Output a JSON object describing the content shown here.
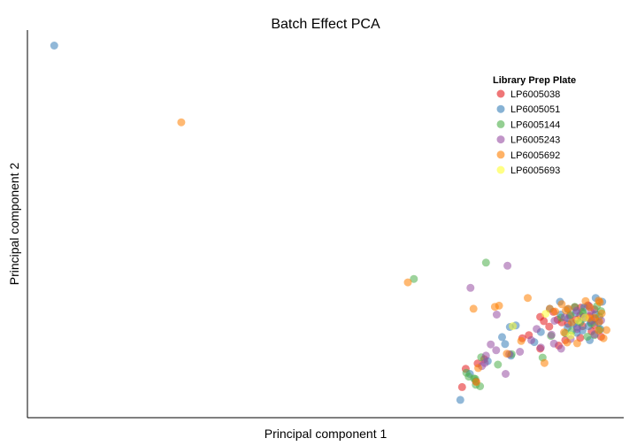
{
  "chart_data": {
    "type": "scatter",
    "title": "Batch Effect PCA",
    "xlabel": "Principal component 1",
    "ylabel": "Principal component 2",
    "xlim": [
      0,
      100
    ],
    "ylim": [
      0,
      100
    ],
    "show_ticks": false,
    "grid": false,
    "legend": {
      "title": "Library Prep Plate",
      "placement": "top-right"
    },
    "series": [
      {
        "name": "LP6005038",
        "color": "#E41A1C",
        "points": [
          [
            73.5,
            12.6
          ],
          [
            75.2,
            9.4
          ],
          [
            72.9,
            7.9
          ],
          [
            75.5,
            14.0
          ],
          [
            86.0,
            26.0
          ],
          [
            87.5,
            23.5
          ],
          [
            88.9,
            25.3
          ],
          [
            89.6,
            24.6
          ],
          [
            90.7,
            24.2
          ],
          [
            92.0,
            25.3
          ],
          [
            93.1,
            23.6
          ],
          [
            94.6,
            22.3
          ],
          [
            92.7,
            20.6
          ],
          [
            90.2,
            20.0
          ],
          [
            95.1,
            23.9
          ],
          [
            96.2,
            20.9
          ],
          [
            95.2,
            25.6
          ],
          [
            94.3,
            26.2
          ],
          [
            92.7,
            26.4
          ],
          [
            91.8,
            28.5
          ],
          [
            88.2,
            27.3
          ],
          [
            89.1,
            18.6
          ],
          [
            84.1,
            21.3
          ],
          [
            83.0,
            20.5
          ],
          [
            86.0,
            17.8
          ],
          [
            76.6,
            15.1
          ],
          [
            95.1,
            27.9
          ],
          [
            91.0,
            26.3
          ],
          [
            94.0,
            29.0
          ],
          [
            92.8,
            28.4
          ],
          [
            86.6,
            24.9
          ]
        ]
      },
      {
        "name": "LP6005051",
        "color": "#377EB8",
        "points": [
          [
            4.5,
            96.0
          ],
          [
            74.2,
            11.3
          ],
          [
            77.2,
            14.6
          ],
          [
            79.6,
            20.8
          ],
          [
            80.1,
            19.0
          ],
          [
            80.9,
            23.4
          ],
          [
            81.9,
            23.8
          ],
          [
            85.0,
            19.5
          ],
          [
            86.1,
            22.1
          ],
          [
            87.6,
            28.1
          ],
          [
            89.3,
            29.9
          ],
          [
            90.7,
            25.6
          ],
          [
            92.0,
            27.1
          ],
          [
            93.4,
            28.5
          ],
          [
            95.3,
            30.9
          ],
          [
            94.1,
            23.6
          ],
          [
            94.3,
            20.0
          ],
          [
            92.1,
            21.9
          ],
          [
            90.6,
            23.3
          ],
          [
            93.2,
            25.5
          ],
          [
            91.6,
            24.3
          ],
          [
            90.6,
            28.0
          ],
          [
            89.4,
            26.6
          ],
          [
            95.3,
            26.7
          ],
          [
            96.4,
            29.9
          ],
          [
            95.8,
            24.5
          ],
          [
            96.1,
            22.8
          ],
          [
            81.1,
            16.0
          ],
          [
            72.6,
            4.6
          ],
          [
            92.2,
            23.4
          ],
          [
            93.1,
            22.5
          ],
          [
            94.4,
            24.6
          ]
        ]
      },
      {
        "name": "LP6005144",
        "color": "#4DAF4A",
        "points": [
          [
            64.8,
            35.8
          ],
          [
            76.9,
            40.0
          ],
          [
            76.1,
            15.6
          ],
          [
            74.0,
            10.6
          ],
          [
            75.2,
            8.5
          ],
          [
            75.1,
            10.0
          ],
          [
            73.6,
            11.6
          ],
          [
            81.2,
            16.4
          ],
          [
            87.8,
            21.1
          ],
          [
            90.2,
            21.8
          ],
          [
            91.3,
            22.4
          ],
          [
            92.7,
            24.6
          ],
          [
            93.1,
            27.3
          ],
          [
            91.1,
            26.6
          ],
          [
            94.6,
            24.3
          ],
          [
            93.9,
            20.9
          ],
          [
            95.1,
            21.3
          ],
          [
            95.9,
            22.7
          ],
          [
            96.2,
            27.5
          ],
          [
            86.4,
            15.5
          ],
          [
            78.9,
            13.7
          ],
          [
            75.9,
            8.1
          ],
          [
            74.9,
            10.1
          ],
          [
            93.2,
            26.9
          ],
          [
            91.8,
            28.6
          ],
          [
            95.5,
            28.8
          ],
          [
            95.9,
            26.1
          ],
          [
            89.5,
            25.8
          ]
        ]
      },
      {
        "name": "LP6005243",
        "color": "#984EA3",
        "points": [
          [
            80.5,
            39.2
          ],
          [
            74.3,
            33.5
          ],
          [
            78.7,
            26.6
          ],
          [
            78.6,
            17.4
          ],
          [
            80.8,
            16.4
          ],
          [
            76.9,
            16.0
          ],
          [
            77.7,
            18.9
          ],
          [
            76.2,
            13.3
          ],
          [
            82.6,
            17.0
          ],
          [
            84.5,
            20.0
          ],
          [
            86.1,
            18.1
          ],
          [
            87.9,
            21.4
          ],
          [
            88.4,
            25.0
          ],
          [
            92.1,
            27.6
          ],
          [
            94.5,
            27.4
          ],
          [
            94.6,
            25.0
          ],
          [
            95.1,
            21.5
          ],
          [
            89.5,
            17.8
          ],
          [
            91.1,
            20.3
          ],
          [
            93.3,
            25.9
          ],
          [
            90.1,
            25.9
          ],
          [
            92.2,
            22.9
          ],
          [
            80.2,
            11.3
          ],
          [
            88.3,
            19.1
          ],
          [
            85.4,
            22.9
          ],
          [
            94.2,
            28.8
          ],
          [
            96.2,
            25.1
          ],
          [
            76.7,
            14.1
          ]
        ]
      },
      {
        "name": "LP6005692",
        "color": "#FF7F00",
        "points": [
          [
            25.8,
            76.2
          ],
          [
            63.8,
            34.9
          ],
          [
            74.8,
            28.1
          ],
          [
            78.4,
            28.6
          ],
          [
            83.9,
            30.9
          ],
          [
            87.6,
            28.1
          ],
          [
            88.5,
            27.4
          ],
          [
            89.6,
            29.3
          ],
          [
            90.7,
            28.1
          ],
          [
            93.6,
            30.1
          ],
          [
            94.2,
            25.7
          ],
          [
            95.9,
            24.8
          ],
          [
            97.1,
            22.6
          ],
          [
            96.6,
            20.5
          ],
          [
            92.2,
            19.2
          ],
          [
            90.5,
            19.4
          ],
          [
            90.0,
            22.0
          ],
          [
            91.3,
            24.6
          ],
          [
            94.3,
            28.5
          ],
          [
            95.1,
            25.8
          ],
          [
            96.0,
            29.8
          ],
          [
            96.3,
            26.9
          ],
          [
            95.8,
            30.2
          ],
          [
            90.3,
            27.7
          ],
          [
            82.8,
            19.8
          ],
          [
            86.7,
            14.1
          ],
          [
            80.4,
            16.5
          ],
          [
            79.1,
            28.9
          ],
          [
            75.6,
            12.8
          ],
          [
            75.3,
            9.2
          ],
          [
            95.8,
            22.5
          ]
        ]
      },
      {
        "name": "LP6005693",
        "color": "#FFFF33",
        "points": [
          [
            81.4,
            23.6
          ],
          [
            86.9,
            26.8
          ],
          [
            91.1,
            21.2
          ],
          [
            93.5,
            25.8
          ],
          [
            92.4,
            25.1
          ]
        ]
      }
    ]
  }
}
